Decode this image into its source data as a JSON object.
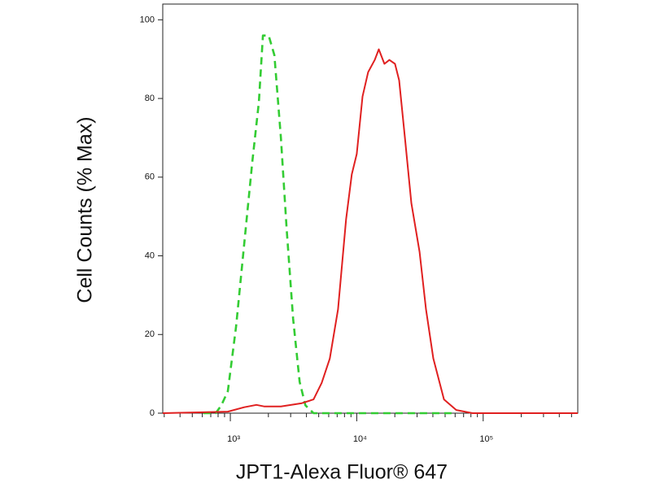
{
  "chart_data": {
    "type": "line",
    "xlabel": "JPT1-Alexa Fluor® 647",
    "ylabel": "Cell Counts (% Max)",
    "xscale": "log",
    "xlim": [
      292,
      560000
    ],
    "ylim": [
      0,
      104
    ],
    "xticks": [
      {
        "value": 1000,
        "label": "10³"
      },
      {
        "value": 10000,
        "label": "10⁴"
      },
      {
        "value": 100000,
        "label": "10⁵"
      }
    ],
    "xminorticks": [
      300,
      400,
      500,
      600,
      700,
      800,
      900,
      2000,
      3000,
      4000,
      5000,
      6000,
      7000,
      8000,
      9000,
      20000,
      30000,
      40000,
      50000,
      60000,
      70000,
      80000,
      90000,
      200000,
      300000,
      400000,
      500000
    ],
    "yticks": [
      0,
      20,
      40,
      60,
      80,
      100
    ],
    "series": [
      {
        "color": "#33cc33",
        "dashed": true,
        "x": [
          612,
          766,
          849,
          956,
          1110,
          1288,
          1493,
          1682,
          1811,
          2010,
          2230,
          2512,
          2786,
          3139,
          3532,
          3924,
          4550,
          7656,
          33800,
          61200
        ],
        "values": [
          0,
          0,
          2,
          5.6,
          22,
          43,
          64,
          79,
          96,
          96,
          91,
          70,
          47,
          24,
          8,
          2,
          0,
          0,
          0,
          0
        ]
      },
      {
        "color": "#e02020",
        "dashed": false,
        "x": [
          292,
          956,
          1288,
          1607,
          1866,
          2512,
          3640,
          4550,
          5280,
          6120,
          7110,
          8240,
          9140,
          10000,
          11100,
          12300,
          13870,
          14930,
          16560,
          18110,
          20080,
          21630,
          24030,
          27040,
          31400,
          35320,
          40360,
          48980,
          61240,
          82400,
          560000
        ],
        "values": [
          0,
          0.4,
          1.5,
          2.1,
          1.7,
          1.7,
          2.5,
          3.5,
          7.7,
          13.9,
          26.4,
          49.3,
          60.7,
          65.9,
          80.5,
          86.7,
          89.8,
          92.5,
          88.8,
          89.8,
          88.8,
          84.6,
          70,
          53.4,
          41,
          26.4,
          13.9,
          3.5,
          0.8,
          0,
          0
        ]
      }
    ]
  }
}
